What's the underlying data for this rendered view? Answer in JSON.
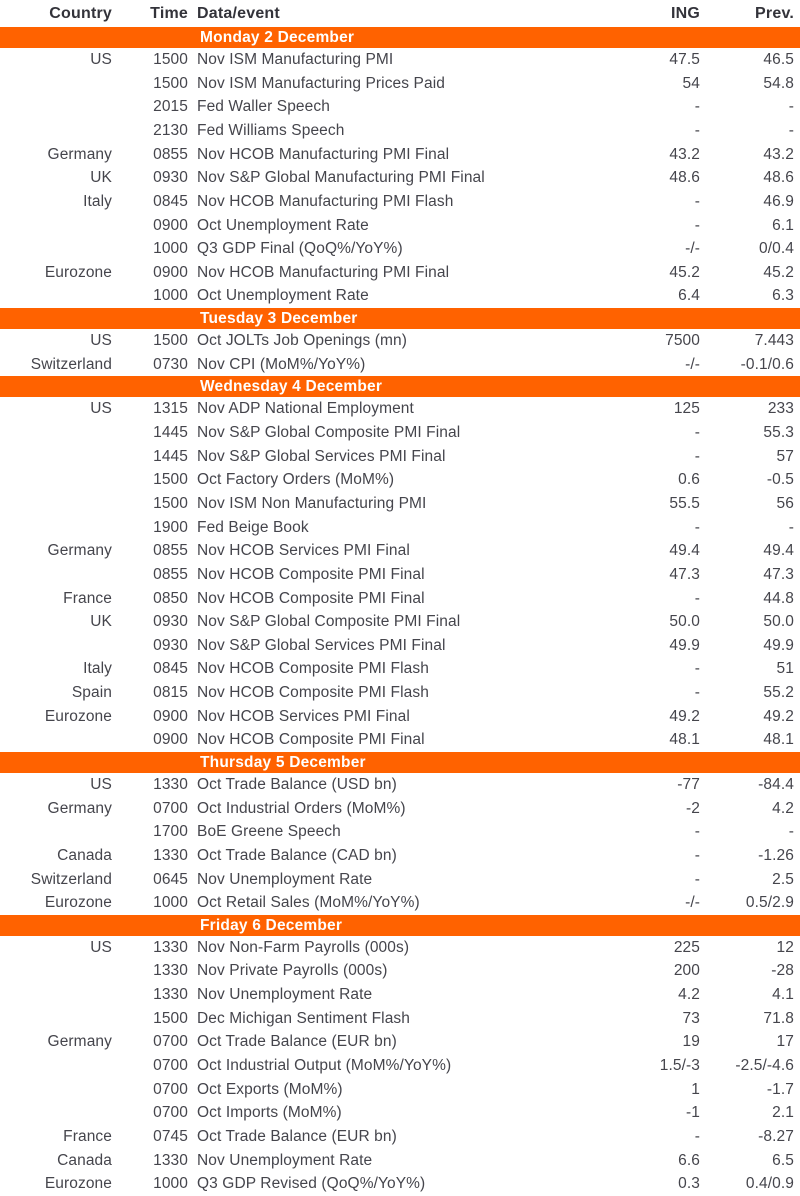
{
  "colors": {
    "accent_orange": "#FF6200",
    "band_text": "#FFFFFF",
    "header_text": "#33333A",
    "body_text": "#45454C",
    "background": "#FFFFFF"
  },
  "table": {
    "columns": [
      "Country",
      "Time",
      "Data/event",
      "ING",
      "Prev."
    ],
    "sections": [
      {
        "date": "Monday 2 December",
        "rows": [
          {
            "country": "US",
            "time": "1500",
            "event": "Nov ISM Manufacturing PMI",
            "ing": "47.5",
            "prev": "46.5"
          },
          {
            "country": "",
            "time": "1500",
            "event": "Nov ISM Manufacturing Prices Paid",
            "ing": "54",
            "prev": "54.8"
          },
          {
            "country": "",
            "time": "2015",
            "event": "Fed Waller Speech",
            "ing": "-",
            "prev": "-"
          },
          {
            "country": "",
            "time": "2130",
            "event": "Fed Williams Speech",
            "ing": "-",
            "prev": "-"
          },
          {
            "country": "Germany",
            "time": "0855",
            "event": "Nov HCOB Manufacturing PMI Final",
            "ing": "43.2",
            "prev": "43.2"
          },
          {
            "country": "UK",
            "time": "0930",
            "event": "Nov S&P Global Manufacturing PMI Final",
            "ing": "48.6",
            "prev": "48.6"
          },
          {
            "country": "Italy",
            "time": "0845",
            "event": "Nov HCOB Manufacturing PMI Flash",
            "ing": "-",
            "prev": "46.9"
          },
          {
            "country": "",
            "time": "0900",
            "event": "Oct Unemployment Rate",
            "ing": "-",
            "prev": "6.1"
          },
          {
            "country": "",
            "time": "1000",
            "event": "Q3 GDP Final (QoQ%/YoY%)",
            "ing": "-/-",
            "prev": "0/0.4"
          },
          {
            "country": "Eurozone",
            "time": "0900",
            "event": "Nov HCOB Manufacturing PMI Final",
            "ing": "45.2",
            "prev": "45.2"
          },
          {
            "country": "",
            "time": "1000",
            "event": "Oct Unemployment Rate",
            "ing": "6.4",
            "prev": "6.3"
          }
        ]
      },
      {
        "date": "Tuesday 3 December",
        "rows": [
          {
            "country": "US",
            "time": "1500",
            "event": "Oct JOLTs Job Openings (mn)",
            "ing": "7500",
            "prev": "7.443"
          },
          {
            "country": "Switzerland",
            "time": "0730",
            "event": "Nov CPI (MoM%/YoY%)",
            "ing": "-/-",
            "prev": "-0.1/0.6"
          }
        ]
      },
      {
        "date": "Wednesday 4 December",
        "rows": [
          {
            "country": "US",
            "time": "1315",
            "event": "Nov ADP National Employment",
            "ing": "125",
            "prev": "233"
          },
          {
            "country": "",
            "time": "1445",
            "event": "Nov S&P Global Composite PMI Final",
            "ing": "-",
            "prev": "55.3"
          },
          {
            "country": "",
            "time": "1445",
            "event": "Nov S&P Global Services PMI Final",
            "ing": "-",
            "prev": "57"
          },
          {
            "country": "",
            "time": "1500",
            "event": "Oct Factory Orders (MoM%)",
            "ing": "0.6",
            "prev": "-0.5"
          },
          {
            "country": "",
            "time": "1500",
            "event": "Nov ISM Non Manufacturing PMI",
            "ing": "55.5",
            "prev": "56"
          },
          {
            "country": "",
            "time": "1900",
            "event": "Fed Beige Book",
            "ing": "-",
            "prev": "-"
          },
          {
            "country": "Germany",
            "time": "0855",
            "event": "Nov HCOB Services PMI Final",
            "ing": "49.4",
            "prev": "49.4"
          },
          {
            "country": "",
            "time": "0855",
            "event": "Nov HCOB Composite PMI Final",
            "ing": "47.3",
            "prev": "47.3"
          },
          {
            "country": "France",
            "time": "0850",
            "event": "Nov HCOB Composite PMI Final",
            "ing": "-",
            "prev": "44.8"
          },
          {
            "country": "UK",
            "time": "0930",
            "event": "Nov S&P Global Composite PMI Final",
            "ing": "50.0",
            "prev": "50.0"
          },
          {
            "country": "",
            "time": "0930",
            "event": "Nov S&P Global Services PMI Final",
            "ing": "49.9",
            "prev": "49.9"
          },
          {
            "country": "Italy",
            "time": "0845",
            "event": "Nov HCOB Composite PMI Flash",
            "ing": "-",
            "prev": "51"
          },
          {
            "country": "Spain",
            "time": "0815",
            "event": "Nov HCOB Composite PMI Flash",
            "ing": "-",
            "prev": "55.2"
          },
          {
            "country": "Eurozone",
            "time": "0900",
            "event": "Nov HCOB Services PMI Final",
            "ing": "49.2",
            "prev": "49.2"
          },
          {
            "country": "",
            "time": "0900",
            "event": "Nov HCOB Composite PMI Final",
            "ing": "48.1",
            "prev": "48.1"
          }
        ]
      },
      {
        "date": "Thursday 5 December",
        "rows": [
          {
            "country": "US",
            "time": "1330",
            "event": "Oct Trade Balance (USD bn)",
            "ing": "-77",
            "prev": "-84.4"
          },
          {
            "country": "Germany",
            "time": "0700",
            "event": "Oct Industrial Orders (MoM%)",
            "ing": "-2",
            "prev": "4.2"
          },
          {
            "country": "",
            "time": "1700",
            "event": "BoE Greene Speech",
            "ing": "-",
            "prev": "-"
          },
          {
            "country": "Canada",
            "time": "1330",
            "event": "Oct Trade Balance (CAD bn)",
            "ing": "-",
            "prev": "-1.26"
          },
          {
            "country": "Switzerland",
            "time": "0645",
            "event": "Nov Unemployment Rate",
            "ing": "-",
            "prev": "2.5"
          },
          {
            "country": "Eurozone",
            "time": "1000",
            "event": "Oct Retail Sales (MoM%/YoY%)",
            "ing": "-/-",
            "prev": "0.5/2.9"
          }
        ]
      },
      {
        "date": "Friday 6 December",
        "rows": [
          {
            "country": "US",
            "time": "1330",
            "event": "Nov Non-Farm Payrolls (000s)",
            "ing": "225",
            "prev": "12"
          },
          {
            "country": "",
            "time": "1330",
            "event": "Nov Private Payrolls (000s)",
            "ing": "200",
            "prev": "-28"
          },
          {
            "country": "",
            "time": "1330",
            "event": "Nov Unemployment Rate",
            "ing": "4.2",
            "prev": "4.1"
          },
          {
            "country": "",
            "time": "1500",
            "event": "Dec Michigan Sentiment Flash",
            "ing": "73",
            "prev": "71.8"
          },
          {
            "country": "Germany",
            "time": "0700",
            "event": "Oct Trade Balance (EUR bn)",
            "ing": "19",
            "prev": "17"
          },
          {
            "country": "",
            "time": "0700",
            "event": "Oct Industrial Output (MoM%/YoY%)",
            "ing": "1.5/-3",
            "prev": "-2.5/-4.6"
          },
          {
            "country": "",
            "time": "0700",
            "event": "Oct Exports (MoM%)",
            "ing": "1",
            "prev": "-1.7"
          },
          {
            "country": "",
            "time": "0700",
            "event": "Oct Imports (MoM%)",
            "ing": "-1",
            "prev": "2.1"
          },
          {
            "country": "France",
            "time": "0745",
            "event": "Oct Trade Balance (EUR bn)",
            "ing": "-",
            "prev": "-8.27"
          },
          {
            "country": "Canada",
            "time": "1330",
            "event": "Nov Unemployment Rate",
            "ing": "6.6",
            "prev": "6.5"
          },
          {
            "country": "Eurozone",
            "time": "1000",
            "event": "Q3 GDP Revised (QoQ%/YoY%)",
            "ing": "0.3",
            "prev": "0.4/0.9"
          }
        ]
      }
    ]
  }
}
